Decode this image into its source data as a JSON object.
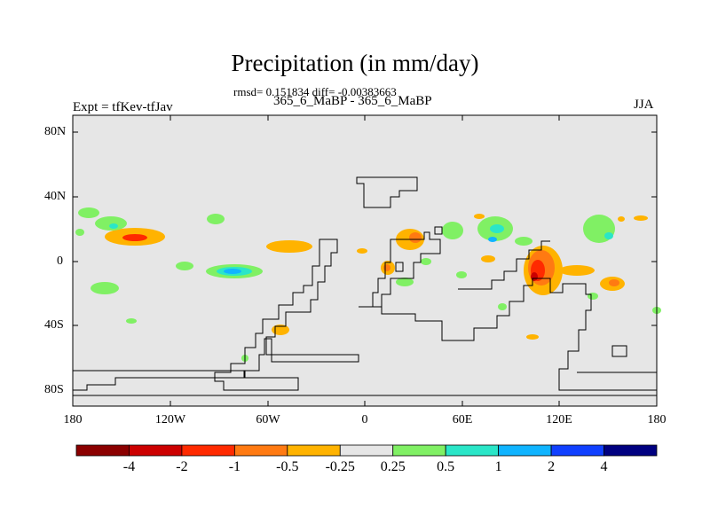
{
  "title": "Precipitation (in mm/day)",
  "stats_line": "rmsd= 0.151834 diff= -0.00383663",
  "subtitle": "365_6_MaBP - 365_6_MaBP",
  "experiment_label": "Expt = tfKev-tfJav",
  "season": "JJA",
  "axes": {
    "y_ticks": [
      "80N",
      "40N",
      "0",
      "40S",
      "80S"
    ],
    "x_ticks": [
      "180",
      "120W",
      "60W",
      "0",
      "60E",
      "120E",
      "180"
    ]
  },
  "colorbar": {
    "colors": [
      "#8b0000",
      "#cc0000",
      "#ff2a00",
      "#ff7a12",
      "#ffb300",
      "#e6e6e6",
      "#80f064",
      "#2ae6c8",
      "#10b4ff",
      "#1040ff",
      "#000080"
    ],
    "labels": [
      "-4",
      "-2",
      "-1",
      "-0.5",
      "-0.25",
      "0.25",
      "0.5",
      "1",
      "2",
      "4"
    ]
  },
  "colors": {
    "background_field": "#e6e6e6",
    "coastline": "#000000"
  }
}
